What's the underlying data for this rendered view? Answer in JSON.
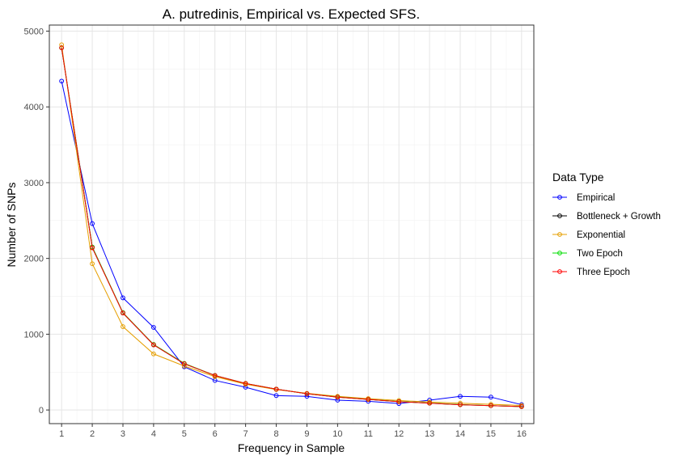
{
  "chart_data": {
    "type": "line",
    "title": "A. putredinis, Empirical vs. Expected SFS.",
    "xlabel": "Frequency in Sample",
    "ylabel": "Number of SNPs",
    "xlim": [
      0.6,
      16.4
    ],
    "ylim": [
      -180,
      5080
    ],
    "x": [
      1,
      2,
      3,
      4,
      5,
      6,
      7,
      8,
      9,
      10,
      11,
      12,
      13,
      14,
      15,
      16
    ],
    "x_ticks": [
      "1",
      "2",
      "3",
      "4",
      "5",
      "6",
      "7",
      "8",
      "9",
      "10",
      "11",
      "12",
      "13",
      "14",
      "15",
      "16"
    ],
    "y_ticks": [
      0,
      1000,
      2000,
      3000,
      4000,
      5000
    ],
    "grid": true,
    "legend": {
      "title": "Data Type",
      "position": "right"
    },
    "series": [
      {
        "name": "Empirical",
        "color": "#0000ff",
        "values": [
          4340,
          2460,
          1480,
          1090,
          570,
          390,
          300,
          190,
          180,
          130,
          115,
          85,
          130,
          180,
          170,
          70
        ]
      },
      {
        "name": "Bottleneck + Growth",
        "color": "#000000",
        "values": [
          4780,
          2150,
          1280,
          860,
          610,
          455,
          350,
          275,
          215,
          170,
          140,
          110,
          90,
          70,
          58,
          45
        ]
      },
      {
        "name": "Exponential",
        "color": "#e69f00",
        "values": [
          4820,
          1930,
          1100,
          740,
          580,
          440,
          340,
          270,
          220,
          180,
          150,
          125,
          105,
          90,
          75,
          60
        ]
      },
      {
        "name": "Two Epoch",
        "color": "#00dd00",
        "values": [
          4780,
          2150,
          1285,
          865,
          615,
          455,
          350,
          275,
          215,
          172,
          140,
          112,
          92,
          72,
          58,
          45
        ]
      },
      {
        "name": "Three Epoch",
        "color": "#ff0000",
        "values": [
          4780,
          2140,
          1280,
          860,
          610,
          455,
          350,
          275,
          215,
          170,
          140,
          110,
          90,
          70,
          58,
          45
        ]
      }
    ]
  }
}
